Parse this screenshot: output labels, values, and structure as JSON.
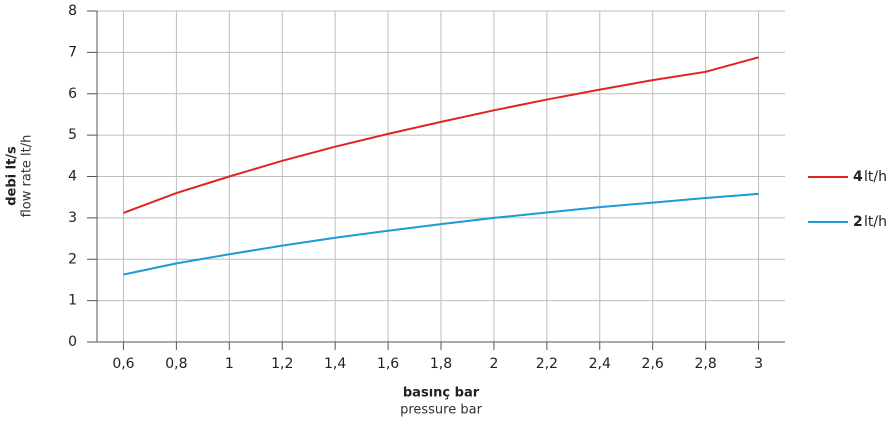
{
  "chart_data": {
    "type": "line",
    "x_label": "basınç bar",
    "x_sublabel": "pressure bar",
    "y_label": "debi lt/s",
    "y_sublabel": "flow rate lt/h",
    "legend_unit": "lt/h",
    "x": [
      0.6,
      0.8,
      1,
      1.2,
      1.4,
      1.6,
      1.8,
      2,
      2.2,
      2.4,
      2.6,
      2.8,
      3
    ],
    "series": [
      {
        "name": "4",
        "color": "#e02424",
        "values": [
          3.12,
          3.6,
          4.0,
          4.38,
          4.72,
          5.03,
          5.32,
          5.6,
          5.86,
          6.1,
          6.33,
          6.53,
          6.88
        ]
      },
      {
        "name": "2",
        "color": "#1e9ad6",
        "values": [
          1.63,
          1.9,
          2.12,
          2.33,
          2.52,
          2.69,
          2.85,
          3.0,
          3.13,
          3.26,
          3.37,
          3.48,
          3.58
        ]
      }
    ],
    "xlim": [
      0.5,
      3.1
    ],
    "xticks": [
      {
        "value": 0.6,
        "label": "0,6"
      },
      {
        "value": 0.8,
        "label": "0,8"
      },
      1,
      {
        "value": 1.2,
        "label": "1,2"
      },
      {
        "value": 1.4,
        "label": "1,4"
      },
      {
        "value": 1.6,
        "label": "1,6"
      },
      {
        "value": 1.8,
        "label": "1,8"
      },
      2,
      {
        "value": 2.2,
        "label": "2,2"
      },
      {
        "value": 2.4,
        "label": "2,4"
      },
      {
        "value": 2.6,
        "label": "2,6"
      },
      {
        "value": 2.8,
        "label": "2,8"
      },
      3
    ],
    "ylim": [
      0,
      8
    ],
    "yticks": [
      0,
      1,
      2,
      3,
      4,
      5,
      6,
      7,
      8
    ],
    "grid": true,
    "legend_position": "right"
  }
}
